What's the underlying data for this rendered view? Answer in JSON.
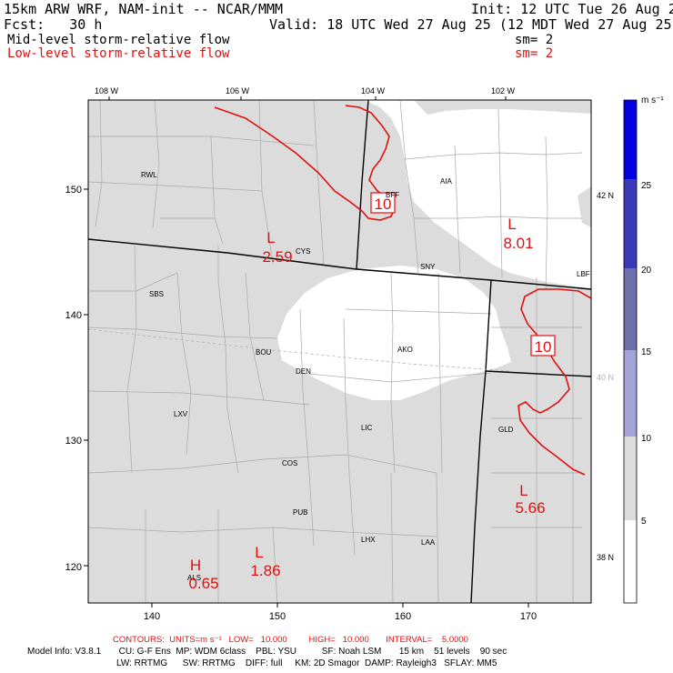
{
  "header": {
    "model_title": "15km ARW WRF, NAM-init -- NCAR/MMM",
    "init": "Init: 12 UTC Tue 26 Aug 25",
    "fcst": "Fcst:   30 h",
    "valid": "Valid: 18 UTC Wed 27 Aug 25 (12 MDT Wed 27 Aug 25)",
    "mid_label": "Mid-level storm-relative flow",
    "mid_sm": "sm= 2",
    "low_label": "Low-level storm-relative flow",
    "low_sm": "sm= 2"
  },
  "axes": {
    "top_lon": [
      "108 W",
      "106 W",
      "104 W",
      "102 W"
    ],
    "right_lat": [
      "42 N",
      "40 N",
      "38 N"
    ],
    "x_ticks": [
      "140",
      "150",
      "160",
      "170"
    ],
    "y_ticks": [
      "150",
      "140",
      "130",
      "120"
    ]
  },
  "stations": [
    "RWL",
    "SBS",
    "CYS",
    "BFF",
    "AIA",
    "SNY",
    "BOU",
    "DEN",
    "AKO",
    "LXV",
    "LIC",
    "GLD",
    "COS",
    "PUB",
    "LHX",
    "LAA",
    "ALS",
    "LBF"
  ],
  "contour_labels": [
    "10",
    "10"
  ],
  "extrema": [
    {
      "letter": "L",
      "value": "2.59"
    },
    {
      "letter": "L",
      "value": "8.01"
    },
    {
      "letter": "L",
      "value": "5.66"
    },
    {
      "letter": "L",
      "value": "1.86"
    },
    {
      "letter": "H",
      "value": "0.65"
    }
  ],
  "colorbar": {
    "unit": "m s⁻¹",
    "labels": [
      "25",
      "20",
      "15",
      "10",
      "5"
    ],
    "colors": [
      "#0000e0",
      "#3a3ab8",
      "#6e6eaa",
      "#a4a4d8",
      "#dcdcdc",
      "#ffffff"
    ]
  },
  "footer": {
    "contours": "CONTOURS:  UNITS=m s⁻¹   LOW=   10.000         HIGH=   10.000       INTERVAL=    5.0000",
    "model_info_1": "Model Info: V3.8.1       CU: G-F Ens  MP: WDM 6class    PBL: YSU          SF: Noah LSM       15 km    51 levels    90 sec",
    "model_info_2": "LW: RRTMG      SW: RRTMG    DIFF: full     KM: 2D Smagor  DAMP: Rayleigh3   SFLAY: MM5"
  },
  "colors": {
    "contour": "#e01010",
    "shade": "#dcdcdc"
  }
}
